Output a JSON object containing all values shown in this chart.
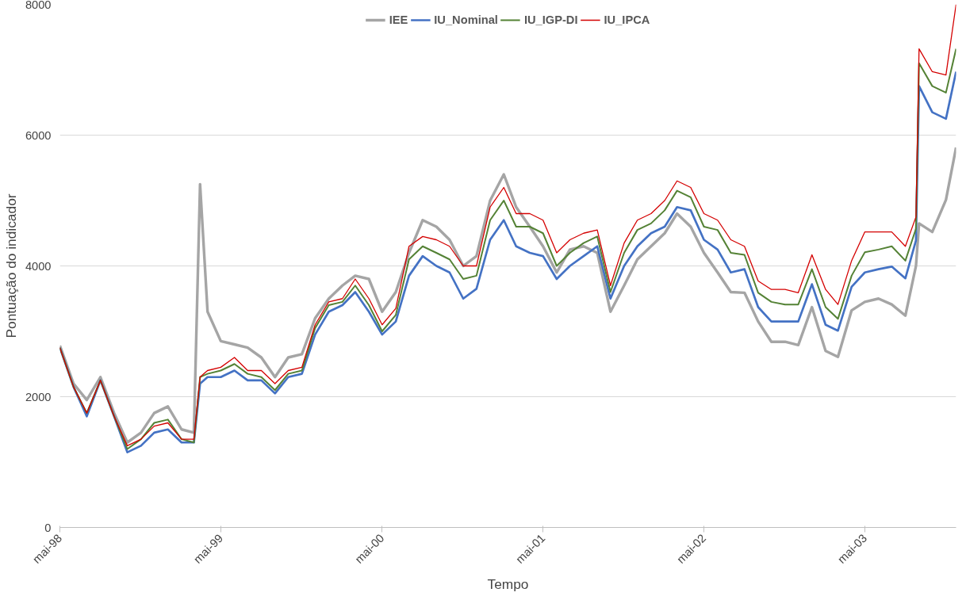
{
  "chart_data": {
    "type": "line",
    "xlabel": "Tempo",
    "ylabel": "Pontuação do indicador",
    "x": [
      "1998-05-01",
      "1998-06-01",
      "1998-07-01",
      "1998-08-01",
      "1998-09-01",
      "1998-10-01",
      "1998-11-01",
      "1998-12-01",
      "1999-01-01",
      "1999-02-01",
      "1999-03-01",
      "1999-03-15",
      "1999-04-01",
      "1999-05-01",
      "1999-06-01",
      "1999-07-01",
      "1999-08-01",
      "1999-09-01",
      "1999-10-01",
      "1999-11-01",
      "1999-12-01",
      "2000-01-01",
      "2000-02-01",
      "2000-03-01",
      "2000-04-01",
      "2000-05-01",
      "2000-06-01",
      "2000-07-01",
      "2000-08-01",
      "2000-09-01",
      "2000-10-01",
      "2000-11-01",
      "2000-12-01",
      "2001-01-01",
      "2001-02-01",
      "2001-03-01",
      "2001-04-01",
      "2001-05-01",
      "2001-06-01",
      "2001-07-01",
      "2001-08-01",
      "2001-09-01",
      "2001-10-01",
      "2001-11-01",
      "2001-12-01",
      "2002-01-01",
      "2002-02-01",
      "2002-03-01",
      "2002-04-01",
      "2002-05-01",
      "2002-06-01",
      "2002-07-01",
      "2002-08-01",
      "2002-09-01",
      "2002-10-01",
      "2002-11-01",
      "2002-12-01",
      "2003-01-01",
      "2003-02-01",
      "2003-03-01",
      "2003-04-01",
      "2003-05-01",
      "2003-06-01",
      "2003-07-01",
      "2003-08-01",
      "2003-08-25",
      "2003-09-01",
      "2003-10-01",
      "2003-11-01",
      "2003-11-24"
    ],
    "series": [
      {
        "name": "IEE",
        "color": "#a5a5a5",
        "values": [
          2780,
          2200,
          1950,
          2300,
          1750,
          1300,
          1450,
          1750,
          1850,
          1500,
          1450,
          5250,
          3300,
          2850,
          2800,
          2750,
          2600,
          2300,
          2600,
          2650,
          3200,
          3500,
          3700,
          3850,
          3800,
          3300,
          3600,
          4200,
          4700,
          4600,
          4400,
          4000,
          4150,
          5000,
          5400,
          4900,
          4600,
          4300,
          3900,
          4250,
          4300,
          4200,
          3300,
          3700,
          4100,
          4300,
          4500,
          4800,
          4600,
          4200,
          3900,
          3600,
          3590,
          3150,
          2840,
          2840,
          2790,
          3370,
          2700,
          2610,
          3320,
          3450,
          3500,
          3410,
          3240,
          4000,
          4650,
          4520,
          5010,
          5810
        ]
      },
      {
        "name": "IU_Nominal",
        "color": "#4472c4",
        "values": [
          2750,
          2150,
          1700,
          2250,
          1700,
          1150,
          1250,
          1450,
          1500,
          1300,
          1300,
          2200,
          2300,
          2300,
          2400,
          2250,
          2250,
          2050,
          2300,
          2350,
          2950,
          3300,
          3400,
          3600,
          3300,
          2950,
          3150,
          3850,
          4150,
          4000,
          3900,
          3500,
          3650,
          4400,
          4700,
          4300,
          4200,
          4150,
          3800,
          4000,
          4150,
          4300,
          3500,
          4000,
          4300,
          4500,
          4600,
          4900,
          4850,
          4400,
          4250,
          3900,
          3950,
          3370,
          3150,
          3150,
          3150,
          3720,
          3100,
          3010,
          3680,
          3900,
          3950,
          3990,
          3810,
          4390,
          6750,
          6350,
          6250,
          6970
        ]
      },
      {
        "name": "IU_IGP-DI",
        "color": "#548235",
        "values": [
          2750,
          2150,
          1750,
          2250,
          1700,
          1200,
          1350,
          1600,
          1650,
          1350,
          1300,
          2300,
          2350,
          2400,
          2500,
          2350,
          2300,
          2100,
          2350,
          2400,
          3050,
          3400,
          3450,
          3700,
          3400,
          3000,
          3250,
          4100,
          4300,
          4200,
          4100,
          3800,
          3850,
          4700,
          5000,
          4600,
          4600,
          4500,
          4000,
          4200,
          4350,
          4450,
          3600,
          4200,
          4550,
          4650,
          4850,
          5150,
          5050,
          4600,
          4550,
          4200,
          4170,
          3590,
          3450,
          3410,
          3410,
          3950,
          3370,
          3190,
          3850,
          4210,
          4250,
          4300,
          4080,
          4570,
          7100,
          6750,
          6650,
          7320
        ]
      },
      {
        "name": "IU_IPCA",
        "color": "#d40000",
        "values": [
          2750,
          2150,
          1750,
          2250,
          1700,
          1250,
          1350,
          1550,
          1600,
          1350,
          1350,
          2300,
          2400,
          2450,
          2600,
          2400,
          2400,
          2200,
          2400,
          2450,
          3100,
          3450,
          3500,
          3800,
          3500,
          3100,
          3350,
          4300,
          4450,
          4400,
          4300,
          4000,
          4000,
          4900,
          5200,
          4800,
          4800,
          4700,
          4200,
          4400,
          4500,
          4550,
          3700,
          4350,
          4700,
          4800,
          5000,
          5300,
          5200,
          4800,
          4700,
          4400,
          4300,
          3770,
          3640,
          3640,
          3590,
          4170,
          3640,
          3410,
          4080,
          4520,
          4520,
          4520,
          4300,
          4750,
          7320,
          6970,
          6920,
          8000
        ]
      }
    ],
    "xlim": [
      "1998-05-01",
      "2003-11-24"
    ],
    "xticks": [
      {
        "value": "1998-05",
        "label": "mai-98"
      },
      {
        "value": "1999-05",
        "label": "mai-99"
      },
      {
        "value": "2000-05",
        "label": "mai-00"
      },
      {
        "value": "2001-05",
        "label": "mai-01"
      },
      {
        "value": "2002-05",
        "label": "mai-02"
      },
      {
        "value": "2003-05",
        "label": "mai-03"
      }
    ],
    "ylim": [
      0,
      8000
    ],
    "yticks": [
      0,
      2000,
      4000,
      6000,
      8000
    ],
    "grid": "y",
    "legend": "top"
  }
}
